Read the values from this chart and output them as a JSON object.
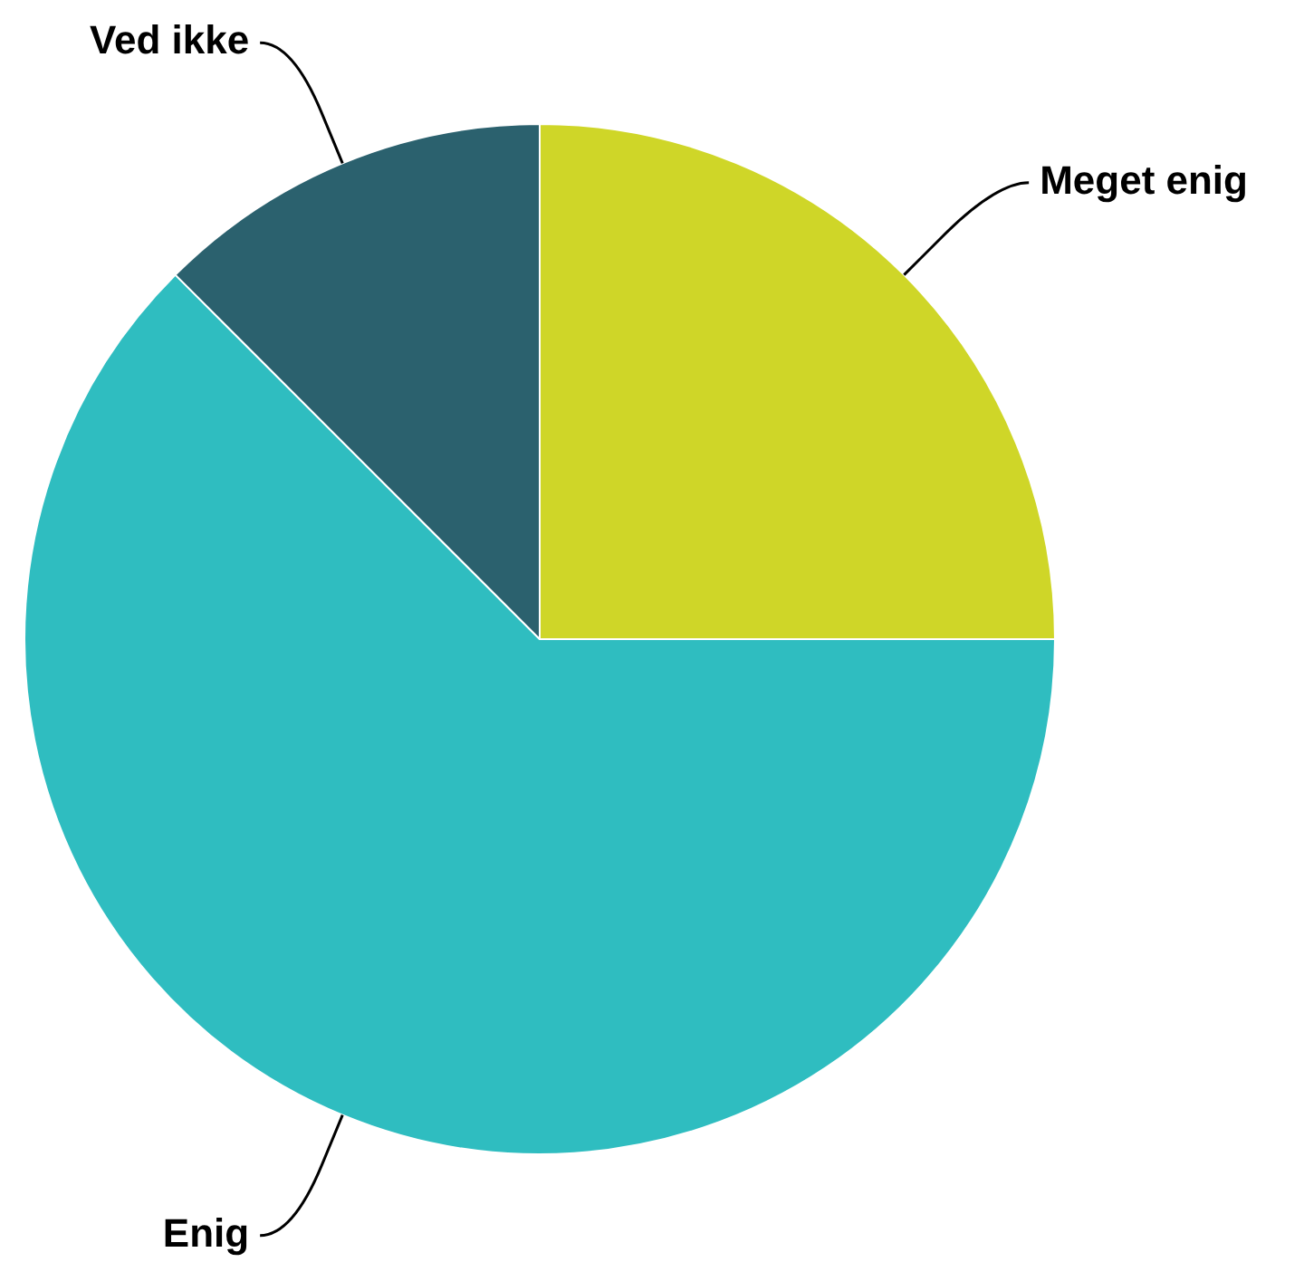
{
  "chart_data": {
    "type": "pie",
    "categories": [
      "Meget enig",
      "Enig",
      "Ved ikke"
    ],
    "values": [
      25,
      62.5,
      12.5
    ],
    "colors": [
      "#cfd628",
      "#2fbdc0",
      "#2b616e"
    ],
    "legend": false
  }
}
